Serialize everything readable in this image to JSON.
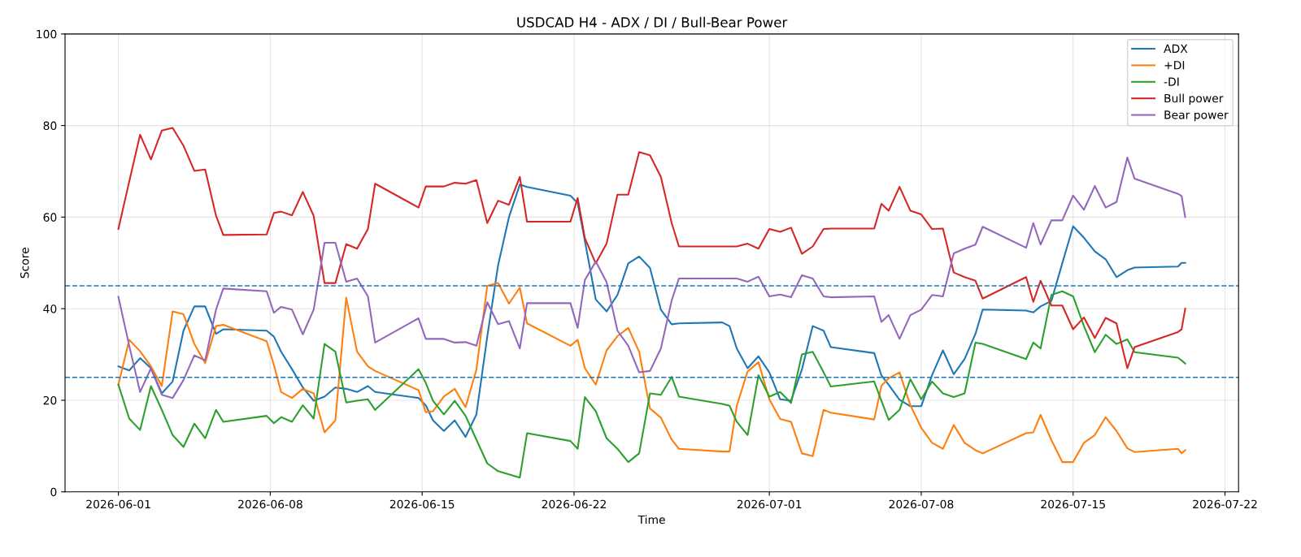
{
  "chart_data": {
    "type": "line",
    "title": "USDCAD H4 - ADX / DI / Bull-Bear Power",
    "xlabel": "Time",
    "ylabel": "Score",
    "x": [
      "2026-06-01T00:00",
      "2026-06-01T12:00",
      "2026-06-02T00:00",
      "2026-06-02T12:00",
      "2026-06-03T00:00",
      "2026-06-03T12:00",
      "2026-06-04T00:00",
      "2026-06-04T12:00",
      "2026-06-05T00:00",
      "2026-06-05T12:00",
      "2026-06-05T20:00",
      "2026-06-07T20:00",
      "2026-06-08T04:00",
      "2026-06-08T12:00",
      "2026-06-09T00:00",
      "2026-06-09T12:00",
      "2026-06-10T00:00",
      "2026-06-10T12:00",
      "2026-06-11T00:00",
      "2026-06-11T12:00",
      "2026-06-12T00:00",
      "2026-06-12T12:00",
      "2026-06-12T20:00",
      "2026-06-14T20:00",
      "2026-06-15T04:00",
      "2026-06-15T12:00",
      "2026-06-16T00:00",
      "2026-06-16T12:00",
      "2026-06-17T00:00",
      "2026-06-17T12:00",
      "2026-06-18T00:00",
      "2026-06-18T12:00",
      "2026-06-19T00:00",
      "2026-06-19T12:00",
      "2026-06-19T20:00",
      "2026-06-21T20:00",
      "2026-06-22T04:00",
      "2026-06-22T12:00",
      "2026-06-23T00:00",
      "2026-06-23T12:00",
      "2026-06-24T00:00",
      "2026-06-24T12:00",
      "2026-06-25T00:00",
      "2026-06-25T12:00",
      "2026-06-26T00:00",
      "2026-06-26T12:00",
      "2026-06-26T20:00",
      "2026-06-28T20:00",
      "2026-06-29T04:00",
      "2026-06-29T12:00",
      "2026-06-30T00:00",
      "2026-06-30T12:00",
      "2026-07-01T00:00",
      "2026-07-01T12:00",
      "2026-07-02T00:00",
      "2026-07-02T12:00",
      "2026-07-03T00:00",
      "2026-07-03T12:00",
      "2026-07-03T20:00",
      "2026-07-05T20:00",
      "2026-07-06T04:00",
      "2026-07-06T12:00",
      "2026-07-07T00:00",
      "2026-07-07T12:00",
      "2026-07-08T00:00",
      "2026-07-08T12:00",
      "2026-07-09T00:00",
      "2026-07-09T12:00",
      "2026-07-10T00:00",
      "2026-07-10T12:00",
      "2026-07-10T20:00",
      "2026-07-12T20:00",
      "2026-07-13T04:00",
      "2026-07-13T12:00",
      "2026-07-14T00:00",
      "2026-07-14T12:00",
      "2026-07-15T00:00",
      "2026-07-15T12:00",
      "2026-07-16T00:00",
      "2026-07-16T12:00",
      "2026-07-17T00:00",
      "2026-07-17T12:00",
      "2026-07-17T20:00",
      "2026-07-19T20:00",
      "2026-07-20T00:00",
      "2026-07-20T04:00"
    ],
    "series": [
      {
        "name": "ADX",
        "color": "#1f77b4",
        "values": [
          27.4,
          26.5,
          29.2,
          27.0,
          21.5,
          24.1,
          35.2,
          40.5,
          40.5,
          34.5,
          35.5,
          35.2,
          33.9,
          30.6,
          26.8,
          22.8,
          19.9,
          20.8,
          22.8,
          22.5,
          21.8,
          23.1,
          21.8,
          20.5,
          18.9,
          15.6,
          13.3,
          15.6,
          12.0,
          16.9,
          33.9,
          49.5,
          60.0,
          67.1,
          66.6,
          64.7,
          63.1,
          54.8,
          42.0,
          39.4,
          43.0,
          49.9,
          51.4,
          48.9,
          39.8,
          36.6,
          36.8,
          37.0,
          36.2,
          31.3,
          27.0,
          29.6,
          26.1,
          20.2,
          19.9,
          26.7,
          36.2,
          35.2,
          31.6,
          30.3,
          25.4,
          23.4,
          20.1,
          18.7,
          18.7,
          25.5,
          30.9,
          25.7,
          29.0,
          34.5,
          39.8,
          39.6,
          39.2,
          40.5,
          41.7,
          49.9,
          58.0,
          55.5,
          52.5,
          50.8,
          46.9,
          48.4,
          49.0,
          49.2,
          50.0,
          50.0
        ]
      },
      {
        "name": "+DI",
        "color": "#ff7f0e",
        "values": [
          23.4,
          33.2,
          30.7,
          27.4,
          23.1,
          39.4,
          38.8,
          32.3,
          28.1,
          36.2,
          36.5,
          32.9,
          27.7,
          21.8,
          20.5,
          22.5,
          21.5,
          13.0,
          15.6,
          42.4,
          30.6,
          27.4,
          26.4,
          22.2,
          17.4,
          17.6,
          20.8,
          22.5,
          18.5,
          26.7,
          45.0,
          45.6,
          41.1,
          44.6,
          36.8,
          31.9,
          33.2,
          27.0,
          23.4,
          30.9,
          34.0,
          35.8,
          30.6,
          18.2,
          16.2,
          11.4,
          9.4,
          8.8,
          8.8,
          18.8,
          26.3,
          28.3,
          20.2,
          15.9,
          15.3,
          8.4,
          7.8,
          17.9,
          17.3,
          15.8,
          23.2,
          24.8,
          26.1,
          18.9,
          14.0,
          10.7,
          9.4,
          14.6,
          10.7,
          9.1,
          8.4,
          12.8,
          13.0,
          16.8,
          11.3,
          6.5,
          6.5,
          10.7,
          12.4,
          16.3,
          13.3,
          9.5,
          8.7,
          9.4,
          8.4,
          9.1
        ]
      },
      {
        "name": "-DI",
        "color": "#2ca02c",
        "values": [
          23.4,
          16.0,
          13.5,
          23.1,
          17.9,
          12.4,
          9.8,
          14.9,
          11.7,
          17.9,
          15.3,
          16.6,
          15.0,
          16.3,
          15.3,
          18.9,
          16.0,
          32.3,
          30.6,
          19.5,
          19.9,
          20.2,
          17.9,
          26.8,
          23.8,
          19.9,
          16.9,
          19.9,
          16.6,
          11.4,
          6.2,
          4.5,
          3.8,
          3.1,
          12.8,
          11.1,
          9.4,
          20.7,
          17.6,
          11.7,
          9.4,
          6.5,
          8.4,
          21.5,
          21.2,
          25.1,
          20.8,
          19.2,
          18.8,
          15.3,
          12.4,
          25.5,
          20.8,
          21.8,
          19.4,
          30.0,
          30.6,
          26.1,
          23.0,
          24.1,
          19.9,
          15.7,
          17.9,
          24.6,
          20.2,
          24.1,
          21.5,
          20.7,
          21.5,
          32.6,
          32.3,
          29.0,
          32.6,
          31.3,
          43.0,
          43.8,
          42.7,
          36.2,
          30.5,
          34.3,
          32.3,
          33.3,
          30.5,
          29.3,
          28.7,
          28.0
        ]
      },
      {
        "name": "Bull power",
        "color": "#d62728",
        "values": [
          57.4,
          67.8,
          78.0,
          72.6,
          78.9,
          79.5,
          75.6,
          70.1,
          70.4,
          60.3,
          56.1,
          56.2,
          60.9,
          61.2,
          60.4,
          65.5,
          60.3,
          45.6,
          45.6,
          54.1,
          53.1,
          57.4,
          67.3,
          62.1,
          66.7,
          66.7,
          66.7,
          67.5,
          67.3,
          68.1,
          58.7,
          63.6,
          62.7,
          68.8,
          59.0,
          59.0,
          64.2,
          55.4,
          49.9,
          54.2,
          64.9,
          64.9,
          74.2,
          73.5,
          68.8,
          58.7,
          53.6,
          53.6,
          53.6,
          53.6,
          54.2,
          53.1,
          57.4,
          56.8,
          57.7,
          52.0,
          53.6,
          57.4,
          57.5,
          57.5,
          62.9,
          61.4,
          66.6,
          61.4,
          60.6,
          57.4,
          57.5,
          47.9,
          46.9,
          46.1,
          42.2,
          46.9,
          41.5,
          46.1,
          40.7,
          40.7,
          35.5,
          38.1,
          33.6,
          38.0,
          36.8,
          27.0,
          31.6,
          34.9,
          35.5,
          40.0
        ]
      },
      {
        "name": "Bear power",
        "color": "#9467bd",
        "values": [
          42.6,
          31.9,
          21.8,
          27.0,
          21.2,
          20.5,
          24.4,
          29.8,
          28.7,
          39.8,
          44.4,
          43.8,
          39.1,
          40.4,
          39.8,
          34.4,
          39.8,
          54.4,
          54.4,
          45.9,
          46.6,
          42.7,
          32.6,
          37.9,
          33.4,
          33.4,
          33.4,
          32.6,
          32.7,
          31.9,
          41.4,
          36.6,
          37.3,
          31.3,
          41.2,
          41.2,
          35.8,
          46.3,
          50.3,
          45.8,
          35.2,
          31.9,
          26.1,
          26.4,
          31.3,
          41.8,
          46.6,
          46.6,
          46.6,
          46.6,
          45.9,
          47.0,
          42.7,
          43.1,
          42.5,
          47.3,
          46.6,
          42.7,
          42.5,
          42.7,
          37.1,
          38.6,
          33.4,
          38.6,
          39.8,
          43.0,
          42.7,
          52.1,
          53.1,
          54.0,
          57.9,
          53.3,
          58.7,
          54.0,
          59.3,
          59.3,
          64.7,
          61.6,
          66.8,
          62.1,
          63.3,
          73.0,
          68.4,
          65.1,
          64.6,
          60.0
        ]
      }
    ],
    "ref_lines": [
      {
        "axis": "y",
        "value": 45,
        "color": "#1f77b4",
        "line_style": "dashed"
      },
      {
        "axis": "y",
        "value": 25,
        "color": "#1f77b4",
        "line_style": "dashed"
      }
    ],
    "xlim": [
      "2026-05-29T13:00",
      "2026-07-22T15:00"
    ],
    "xticks": [
      "2026-06-01",
      "2026-06-08",
      "2026-06-15",
      "2026-06-22",
      "2026-07-01",
      "2026-07-08",
      "2026-07-15",
      "2026-07-22"
    ],
    "ylim": [
      0,
      100
    ],
    "yticks": [
      0,
      20,
      40,
      60,
      80,
      100
    ],
    "grid": true,
    "legend": "top right",
    "marker": "none",
    "line_style": "solid"
  }
}
